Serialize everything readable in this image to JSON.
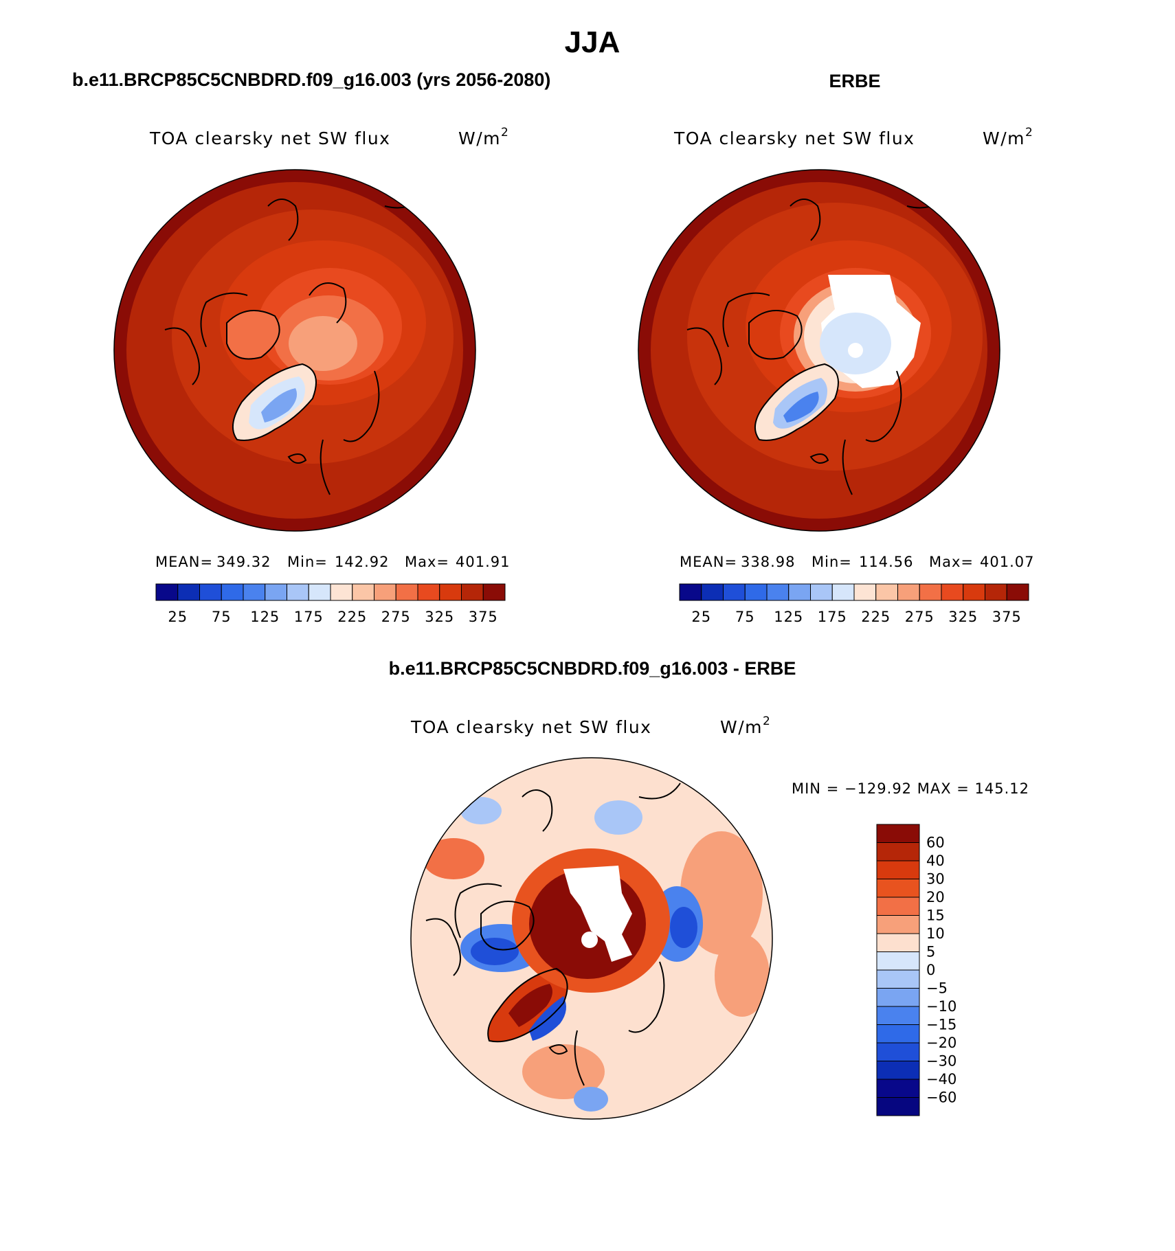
{
  "chart_data": {
    "type": "heatmap",
    "title": "JJA",
    "panels": [
      {
        "id": "model",
        "header": "b.e11.BRCP85C5CNBDRD.f09_g16.003 (yrs 2056-2080)",
        "subtitle": "TOA clearsky net SW flux",
        "units_base": "W/m",
        "units_exp": "2",
        "projection": "north polar stereographic",
        "stats": {
          "mean_label": "MEAN=",
          "mean": "349.32",
          "min_label": "Min=",
          "min": "142.92",
          "max_label": "Max=",
          "max": "401.91"
        },
        "colorbar": {
          "orientation": "horizontal",
          "levels": [
            0,
            25,
            50,
            75,
            100,
            125,
            150,
            175,
            200,
            225,
            250,
            275,
            300,
            325,
            350,
            375,
            400
          ],
          "tick_labels": [
            "25",
            "75",
            "125",
            "175",
            "225",
            "275",
            "325",
            "375"
          ]
        }
      },
      {
        "id": "obs",
        "header": "ERBE",
        "subtitle": "TOA clearsky net SW flux",
        "units_base": "W/m",
        "units_exp": "2",
        "projection": "north polar stereographic",
        "stats": {
          "mean_label": "MEAN=",
          "mean": "338.98",
          "min_label": "Min=",
          "min": "114.56",
          "max_label": "Max=",
          "max": "401.07"
        },
        "colorbar": {
          "orientation": "horizontal",
          "levels": [
            0,
            25,
            50,
            75,
            100,
            125,
            150,
            175,
            200,
            225,
            250,
            275,
            300,
            325,
            350,
            375,
            400
          ],
          "tick_labels": [
            "25",
            "75",
            "125",
            "175",
            "225",
            "275",
            "325",
            "375"
          ]
        }
      },
      {
        "id": "diff",
        "header": "b.e11.BRCP85C5CNBDRD.f09_g16.003 - ERBE",
        "subtitle": "TOA clearsky net SW flux",
        "units_base": "W/m",
        "units_exp": "2",
        "projection": "north polar stereographic",
        "minmax_text": "MIN = −129.92 MAX = 145.12",
        "colorbar": {
          "orientation": "vertical",
          "tick_labels": [
            "60",
            "40",
            "30",
            "20",
            "15",
            "10",
            "5",
            "0",
            "−5",
            "−10",
            "−15",
            "−20",
            "−30",
            "−40",
            "−60"
          ]
        }
      }
    ],
    "colors": {
      "abs_palette": [
        "#08088a",
        "#0c2eb5",
        "#1f4fd8",
        "#2f6ae8",
        "#4a82ee",
        "#7aa5f2",
        "#a9c6f7",
        "#d6e6fb",
        "#fde4d4",
        "#fbc6a7",
        "#f7a07a",
        "#f27046",
        "#e84a1f",
        "#d83a0e",
        "#b52608",
        "#8a0c06"
      ],
      "diff_palette": [
        "#8a0c06",
        "#b52608",
        "#d83a0e",
        "#e8531f",
        "#f27046",
        "#f7a07a",
        "#fde0cf",
        "#d6e6fb",
        "#a9c6f7",
        "#7aa5f2",
        "#4a82ee",
        "#2f6ae8",
        "#1f4fd8",
        "#0c2eb5",
        "#08088a",
        "#060680"
      ],
      "missing": "#ffffff",
      "coast": "#000000"
    }
  }
}
